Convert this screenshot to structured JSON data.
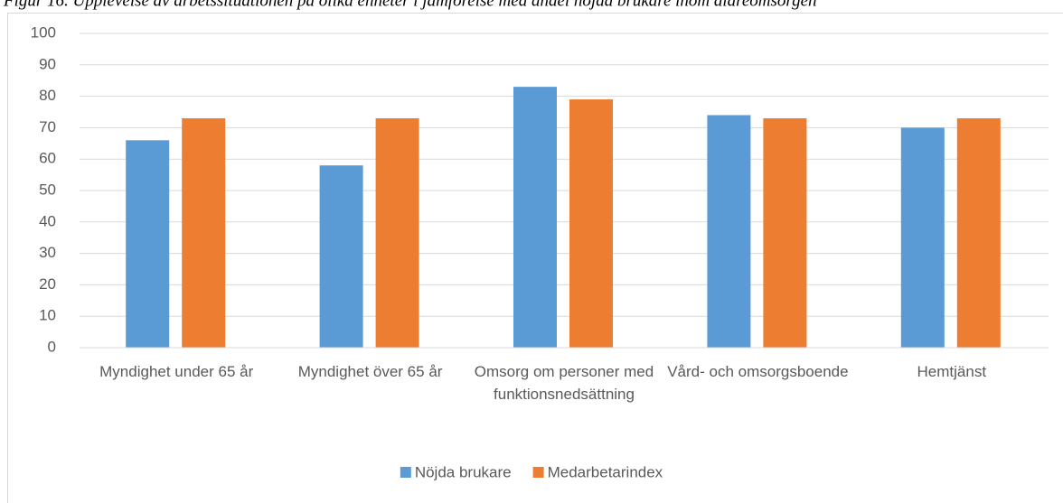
{
  "chart_data": {
    "type": "bar",
    "title": "Figur 16. Upplevelse av arbetssituationen på olika enheter i jämförelse med andel nöjda brukare inom äldreomsorgen",
    "categories": [
      "Myndighet under 65 år",
      "Myndighet över 65 år",
      "Omsorg om personer med funktionsnedsättning",
      "Vård- och omsorgsboende",
      "Hemtjänst"
    ],
    "series": [
      {
        "name": "Nöjda brukare",
        "color": "#5b9bd5",
        "values": [
          66,
          58,
          83,
          74,
          70
        ]
      },
      {
        "name": "Medarbetarindex",
        "color": "#ed7d31",
        "values": [
          73,
          73,
          79,
          73,
          73
        ]
      }
    ],
    "ylim": [
      0,
      100
    ],
    "yticks": [
      0,
      10,
      20,
      30,
      40,
      50,
      60,
      70,
      80,
      90,
      100
    ],
    "grid": true,
    "legend": "bottom"
  }
}
